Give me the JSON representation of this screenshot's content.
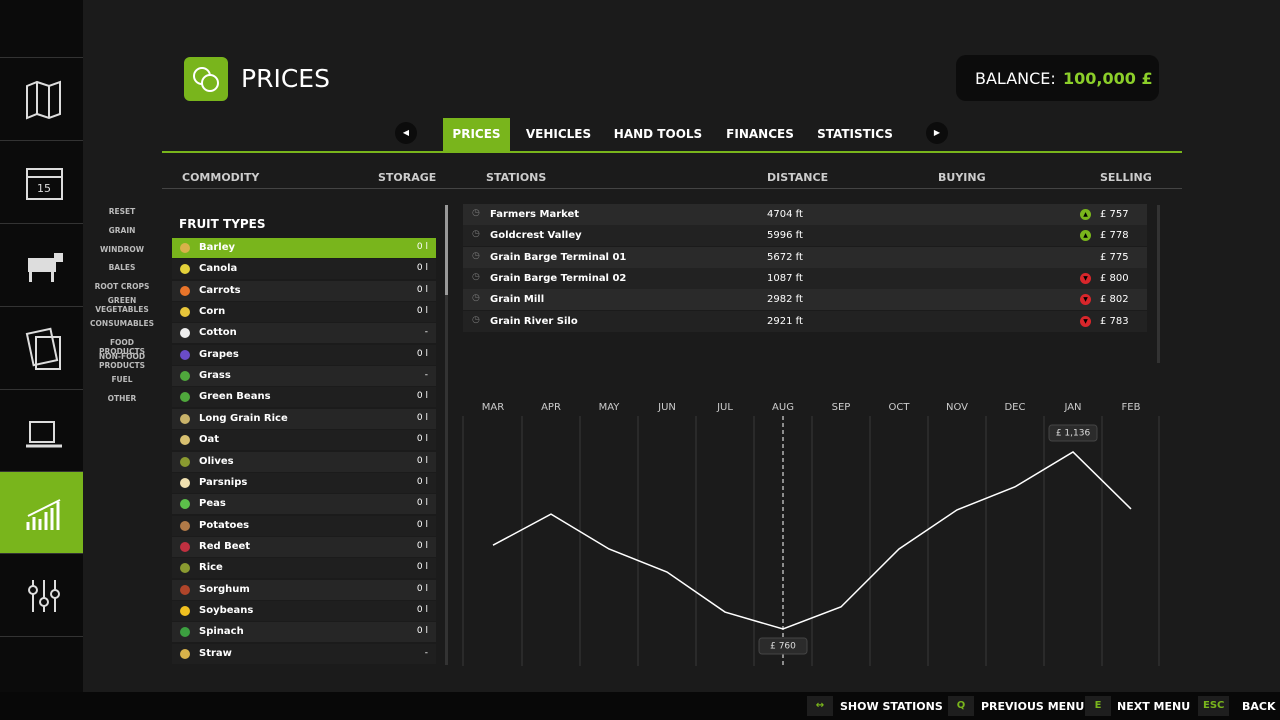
{
  "header": {
    "title": "PRICES",
    "balance_label": "BALANCE:",
    "balance_value": "100,000 £"
  },
  "tabs": [
    "PRICES",
    "VEHICLES",
    "HAND TOOLS",
    "FINANCES",
    "STATISTICS"
  ],
  "columns": [
    "COMMODITY",
    "STORAGE",
    "STATIONS",
    "DISTANCE",
    "BUYING",
    "SELLING"
  ],
  "filters": [
    "RESET",
    "GRAIN",
    "WINDROW",
    "BALES",
    "ROOT CROPS",
    "GREEN VEGETABLES",
    "CONSUMABLES",
    "FOOD PRODUCTS",
    "NON-FOOD PRODUCTS",
    "FUEL",
    "OTHER"
  ],
  "list": {
    "heading": "FRUIT TYPES",
    "items": [
      {
        "name": "Barley",
        "storage": "0 l"
      },
      {
        "name": "Canola",
        "storage": "0 l"
      },
      {
        "name": "Carrots",
        "storage": "0 l"
      },
      {
        "name": "Corn",
        "storage": "0 l"
      },
      {
        "name": "Cotton",
        "storage": "-"
      },
      {
        "name": "Grapes",
        "storage": "0 l"
      },
      {
        "name": "Grass",
        "storage": "-"
      },
      {
        "name": "Green Beans",
        "storage": "0 l"
      },
      {
        "name": "Long Grain Rice",
        "storage": "0 l"
      },
      {
        "name": "Oat",
        "storage": "0 l"
      },
      {
        "name": "Olives",
        "storage": "0 l"
      },
      {
        "name": "Parsnips",
        "storage": "0 l"
      },
      {
        "name": "Peas",
        "storage": "0 l"
      },
      {
        "name": "Potatoes",
        "storage": "0 l"
      },
      {
        "name": "Red Beet",
        "storage": "0 l"
      },
      {
        "name": "Rice",
        "storage": "0 l"
      },
      {
        "name": "Sorghum",
        "storage": "0 l"
      },
      {
        "name": "Soybeans",
        "storage": "0 l"
      },
      {
        "name": "Spinach",
        "storage": "0 l"
      },
      {
        "name": "Straw",
        "storage": "-"
      }
    ]
  },
  "stations": [
    {
      "name": "Farmers Market",
      "distance": "4704 ft",
      "price": "£ 757",
      "trend": "up"
    },
    {
      "name": "Goldcrest Valley",
      "distance": "5996 ft",
      "price": "£ 778",
      "trend": "up"
    },
    {
      "name": "Grain Barge Terminal 01",
      "distance": "5672 ft",
      "price": "£ 775",
      "trend": null
    },
    {
      "name": "Grain Barge Terminal 02",
      "distance": "1087 ft",
      "price": "£ 800",
      "trend": "down"
    },
    {
      "name": "Grain Mill",
      "distance": "2982 ft",
      "price": "£ 802",
      "trend": "down"
    },
    {
      "name": "Grain River Silo",
      "distance": "2921 ft",
      "price": "£ 783",
      "trend": "down"
    }
  ],
  "chart_data": {
    "type": "line",
    "categories": [
      "MAR",
      "APR",
      "MAY",
      "JUN",
      "JUL",
      "AUG",
      "SEP",
      "OCT",
      "NOV",
      "DEC",
      "JAN",
      "FEB"
    ],
    "values": [
      938,
      1004,
      930,
      881,
      796,
      760,
      807,
      930,
      1013,
      1062,
      1136,
      1015
    ],
    "value_labels": [
      null,
      null,
      null,
      null,
      null,
      "£ 760",
      null,
      null,
      null,
      null,
      "£ 1,136",
      null
    ],
    "color": "#ffffff",
    "highlight": "AUG"
  },
  "footer": [
    {
      "key": "↔",
      "label": "SHOW STATIONS"
    },
    {
      "key": "Q",
      "label": "PREVIOUS MENU"
    },
    {
      "key": "E",
      "label": "NEXT MENU"
    },
    {
      "key": "ESC",
      "label": "BACK"
    }
  ]
}
